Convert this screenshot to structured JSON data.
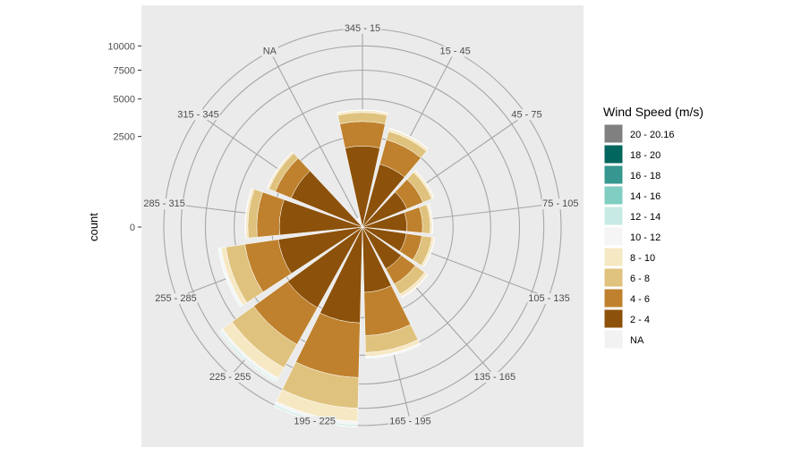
{
  "chart_data": {
    "type": "bar",
    "subtype": "polar-stacked-windrose",
    "ylabel": "count",
    "y_ticks": [
      0,
      2500,
      5000,
      7500,
      10000
    ],
    "y_tick_labels": [
      "0",
      "2500",
      "5000",
      "7500",
      "10000"
    ],
    "rmax": 12000,
    "grid": true,
    "legend_position": "right",
    "legend_title": "Wind Speed (m/s)",
    "categories": [
      "345 - 15",
      "15 - 45",
      "45 - 75",
      "75 - 105",
      "105 - 135",
      "135 - 165",
      "165 - 195",
      "195 - 225",
      "225 - 255",
      "255 - 285",
      "285 - 315",
      "315 - 345",
      "NA"
    ],
    "series": [
      {
        "name": "2 - 4",
        "color": "#8c510a",
        "values": [
          2000,
          1300,
          700,
          600,
          600,
          700,
          1300,
          2800,
          2600,
          2200,
          2100,
          1800,
          0
        ]
      },
      {
        "name": "4 - 6",
        "color": "#bf812d",
        "values": [
          1400,
          1200,
          600,
          500,
          500,
          600,
          2300,
          4100,
          2900,
          2100,
          1300,
          900,
          0
        ]
      },
      {
        "name": "6 - 8",
        "color": "#dfc27d",
        "values": [
          600,
          500,
          400,
          300,
          400,
          500,
          1200,
          3100,
          2400,
          1500,
          600,
          400,
          0
        ]
      },
      {
        "name": "8 - 10",
        "color": "#f6e8c3",
        "values": [
          150,
          150,
          100,
          80,
          100,
          150,
          300,
          1500,
          1200,
          400,
          150,
          100,
          0
        ]
      },
      {
        "name": "10 - 12",
        "color": "#f5f5f5",
        "values": [
          30,
          30,
          20,
          20,
          20,
          30,
          80,
          400,
          250,
          150,
          30,
          20,
          0
        ]
      },
      {
        "name": "12 - 14",
        "color": "#c7eae5",
        "values": [
          10,
          10,
          5,
          5,
          5,
          10,
          40,
          150,
          100,
          60,
          10,
          5,
          0
        ]
      },
      {
        "name": "14 - 16",
        "color": "#80cdc1",
        "values": [
          5,
          5,
          2,
          2,
          2,
          5,
          20,
          80,
          60,
          30,
          5,
          2,
          0
        ]
      },
      {
        "name": "16 - 18",
        "color": "#35978f",
        "values": [
          2,
          2,
          0,
          0,
          0,
          2,
          10,
          40,
          30,
          15,
          2,
          0,
          0
        ]
      },
      {
        "name": "18 - 20",
        "color": "#01665e",
        "values": [
          0,
          0,
          0,
          0,
          0,
          0,
          5,
          20,
          15,
          5,
          0,
          0,
          0
        ]
      },
      {
        "name": "20 - 20.16",
        "color": "#808080",
        "values": [
          0,
          0,
          0,
          0,
          0,
          0,
          0,
          5,
          3,
          2,
          0,
          0,
          0
        ]
      },
      {
        "name": "NA",
        "color": "#f2f2f2",
        "values": [
          0,
          0,
          0,
          0,
          0,
          0,
          0,
          0,
          0,
          0,
          0,
          0,
          30
        ]
      }
    ],
    "legend_order": [
      "20 - 20.16",
      "18 - 20",
      "16 - 18",
      "14 - 16",
      "12 - 14",
      "10 - 12",
      "8 - 10",
      "6 - 8",
      "4 - 6",
      "2 - 4",
      "NA"
    ]
  }
}
